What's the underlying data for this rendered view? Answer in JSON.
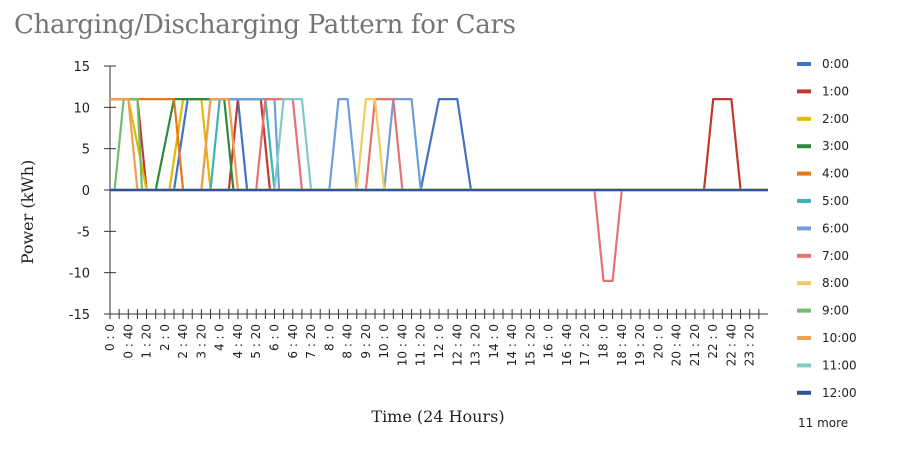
{
  "title": "Charging/Discharging Pattern for Cars",
  "chart_data": {
    "type": "line",
    "title": "Charging/Discharging Pattern for Cars",
    "xlabel": "Time (24 Hours)",
    "ylabel": "Power (kWh)",
    "ylim": [
      -15,
      15
    ],
    "yticks": [
      15,
      10,
      5,
      0,
      -5,
      -10,
      -15
    ],
    "xlim": [
      0,
      1440
    ],
    "step_minutes": 20,
    "x_tick_labels": [
      "0 : 0",
      "0 : 40",
      "1 : 20",
      "2 : 0",
      "2 : 40",
      "3 : 20",
      "4 : 0",
      "4 : 40",
      "5 : 20",
      "6 : 0",
      "6 : 40",
      "7 : 20",
      "8 : 0",
      "8 : 40",
      "9 : 20",
      "10 : 0",
      "10 : 40",
      "11 : 20",
      "12 : 0",
      "12 : 40",
      "13 : 20",
      "14 : 0",
      "14 : 40",
      "15 : 20",
      "16 : 0",
      "16 : 40",
      "17 : 20",
      "18 : 0",
      "18 : 40",
      "19 : 20",
      "20 : 0",
      "20 : 40",
      "21 : 20",
      "22 : 0",
      "22 : 40",
      "23 : 20"
    ],
    "legend_position": "right",
    "legend_more": "11 more",
    "series": [
      {
        "name": "0:00",
        "color": "#4472c4",
        "points": [
          [
            0,
            0
          ],
          [
            140,
            0
          ],
          [
            170,
            11
          ],
          [
            280,
            11
          ],
          [
            300,
            0
          ],
          [
            680,
            0
          ],
          [
            720,
            11
          ],
          [
            760,
            11
          ],
          [
            790,
            0
          ],
          [
            1440,
            0
          ]
        ]
      },
      {
        "name": "1:00",
        "color": "#c0392b",
        "points": [
          [
            0,
            11
          ],
          [
            60,
            11
          ],
          [
            80,
            0
          ],
          [
            260,
            0
          ],
          [
            280,
            11
          ],
          [
            330,
            11
          ],
          [
            350,
            0
          ],
          [
            1300,
            0
          ],
          [
            1320,
            11
          ],
          [
            1360,
            11
          ],
          [
            1380,
            0
          ],
          [
            1440,
            0
          ]
        ]
      },
      {
        "name": "2:00",
        "color": "#e6b800",
        "points": [
          [
            0,
            11
          ],
          [
            40,
            11
          ],
          [
            80,
            0
          ],
          [
            130,
            0
          ],
          [
            160,
            11
          ],
          [
            200,
            11
          ],
          [
            220,
            0
          ],
          [
            1440,
            0
          ]
        ]
      },
      {
        "name": "3:00",
        "color": "#2e8b3e",
        "points": [
          [
            0,
            0
          ],
          [
            100,
            0
          ],
          [
            140,
            11
          ],
          [
            250,
            11
          ],
          [
            270,
            0
          ],
          [
            1440,
            0
          ]
        ]
      },
      {
        "name": "4:00",
        "color": "#e8761a",
        "points": [
          [
            0,
            11
          ],
          [
            140,
            11
          ],
          [
            160,
            0
          ],
          [
            1440,
            0
          ]
        ]
      },
      {
        "name": "5:00",
        "color": "#3cb4b4",
        "points": [
          [
            0,
            0
          ],
          [
            220,
            0
          ],
          [
            240,
            11
          ],
          [
            340,
            11
          ],
          [
            360,
            0
          ],
          [
            1440,
            0
          ]
        ]
      },
      {
        "name": "6:00",
        "color": "#6f9fd8",
        "points": [
          [
            0,
            0
          ],
          [
            200,
            0
          ],
          [
            220,
            11
          ],
          [
            360,
            11
          ],
          [
            370,
            0
          ],
          [
            480,
            0
          ],
          [
            500,
            11
          ],
          [
            520,
            11
          ],
          [
            540,
            0
          ],
          [
            600,
            0
          ],
          [
            620,
            11
          ],
          [
            660,
            11
          ],
          [
            680,
            0
          ],
          [
            1440,
            0
          ]
        ]
      },
      {
        "name": "7:00",
        "color": "#e57373",
        "points": [
          [
            0,
            0
          ],
          [
            320,
            0
          ],
          [
            340,
            11
          ],
          [
            400,
            11
          ],
          [
            420,
            0
          ],
          [
            560,
            0
          ],
          [
            580,
            11
          ],
          [
            620,
            11
          ],
          [
            640,
            0
          ],
          [
            1060,
            0
          ],
          [
            1080,
            -11
          ],
          [
            1100,
            -11
          ],
          [
            1120,
            0
          ],
          [
            1440,
            0
          ]
        ]
      },
      {
        "name": "8:00",
        "color": "#f2cc5c",
        "points": [
          [
            0,
            0
          ],
          [
            540,
            0
          ],
          [
            560,
            11
          ],
          [
            580,
            11
          ],
          [
            600,
            0
          ],
          [
            1440,
            0
          ]
        ]
      },
      {
        "name": "9:00",
        "color": "#6cbf6c",
        "points": [
          [
            0,
            0
          ],
          [
            10,
            0
          ],
          [
            30,
            11
          ],
          [
            60,
            11
          ],
          [
            70,
            0
          ],
          [
            1440,
            0
          ]
        ]
      },
      {
        "name": "10:00",
        "color": "#f0a050",
        "points": [
          [
            0,
            11
          ],
          [
            40,
            11
          ],
          [
            60,
            0
          ],
          [
            200,
            0
          ],
          [
            220,
            11
          ],
          [
            260,
            11
          ],
          [
            280,
            0
          ],
          [
            1440,
            0
          ]
        ]
      },
      {
        "name": "11:00",
        "color": "#80cbc4",
        "points": [
          [
            0,
            0
          ],
          [
            360,
            0
          ],
          [
            380,
            11
          ],
          [
            420,
            11
          ],
          [
            440,
            0
          ],
          [
            1440,
            0
          ]
        ]
      },
      {
        "name": "12:00",
        "color": "#2f5597",
        "points": [
          [
            0,
            0
          ],
          [
            1440,
            0
          ]
        ]
      }
    ]
  }
}
